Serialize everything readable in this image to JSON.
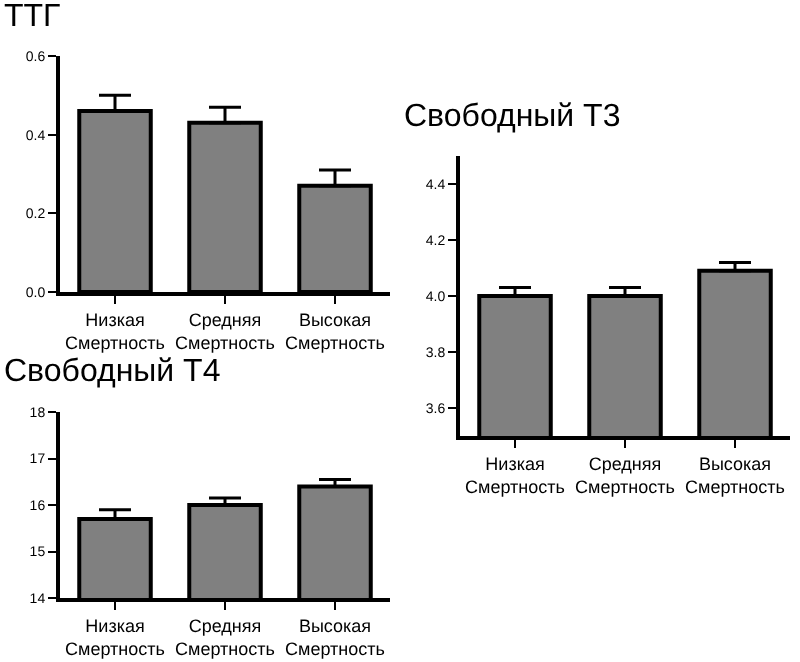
{
  "chart_data": [
    {
      "type": "bar",
      "title": "ТТГ",
      "categories": [
        "Низкая\nСмертность",
        "Средняя\nСмертность",
        "Высокая\nСмертность"
      ],
      "values": [
        0.46,
        0.43,
        0.27
      ],
      "errors": [
        [
          0.46,
          0.5
        ],
        [
          0.43,
          0.47
        ],
        [
          0.27,
          0.31
        ]
      ],
      "color": "#808080",
      "ylim": [
        0,
        0.6
      ],
      "yticks": [
        {
          "value": 0,
          "label": "0.0"
        },
        0.2,
        0.4,
        0.6
      ],
      "grid": false
    },
    {
      "type": "bar",
      "title": "Свободный Т3",
      "categories": [
        "Низкая\nСмертность",
        "Средняя\nСмертность",
        "Высокая\nСмертность"
      ],
      "values": [
        4.0,
        4.0,
        4.09
      ],
      "errors": [
        [
          4.0,
          4.03
        ],
        [
          4.0,
          4.03
        ],
        [
          4.09,
          4.12
        ]
      ],
      "color": "#808080",
      "ylim": [
        3.5,
        4.5
      ],
      "yticks": [
        3.6,
        3.8,
        {
          "value": 4,
          "label": "4.0"
        },
        4.2,
        4.4
      ],
      "grid": false
    },
    {
      "type": "bar",
      "title": "Свободный Т4",
      "categories": [
        "Низкая\nСмертность",
        "Средняя\nСмертность",
        "Высокая\nСмертность"
      ],
      "values": [
        15.7,
        16.0,
        16.4
      ],
      "errors": [
        [
          15.7,
          15.9
        ],
        [
          16.0,
          16.15
        ],
        [
          16.4,
          16.55
        ]
      ],
      "color": "#808080",
      "ylim": [
        14,
        18
      ],
      "yticks": [
        14,
        15,
        16,
        17,
        18
      ],
      "grid": false
    }
  ]
}
